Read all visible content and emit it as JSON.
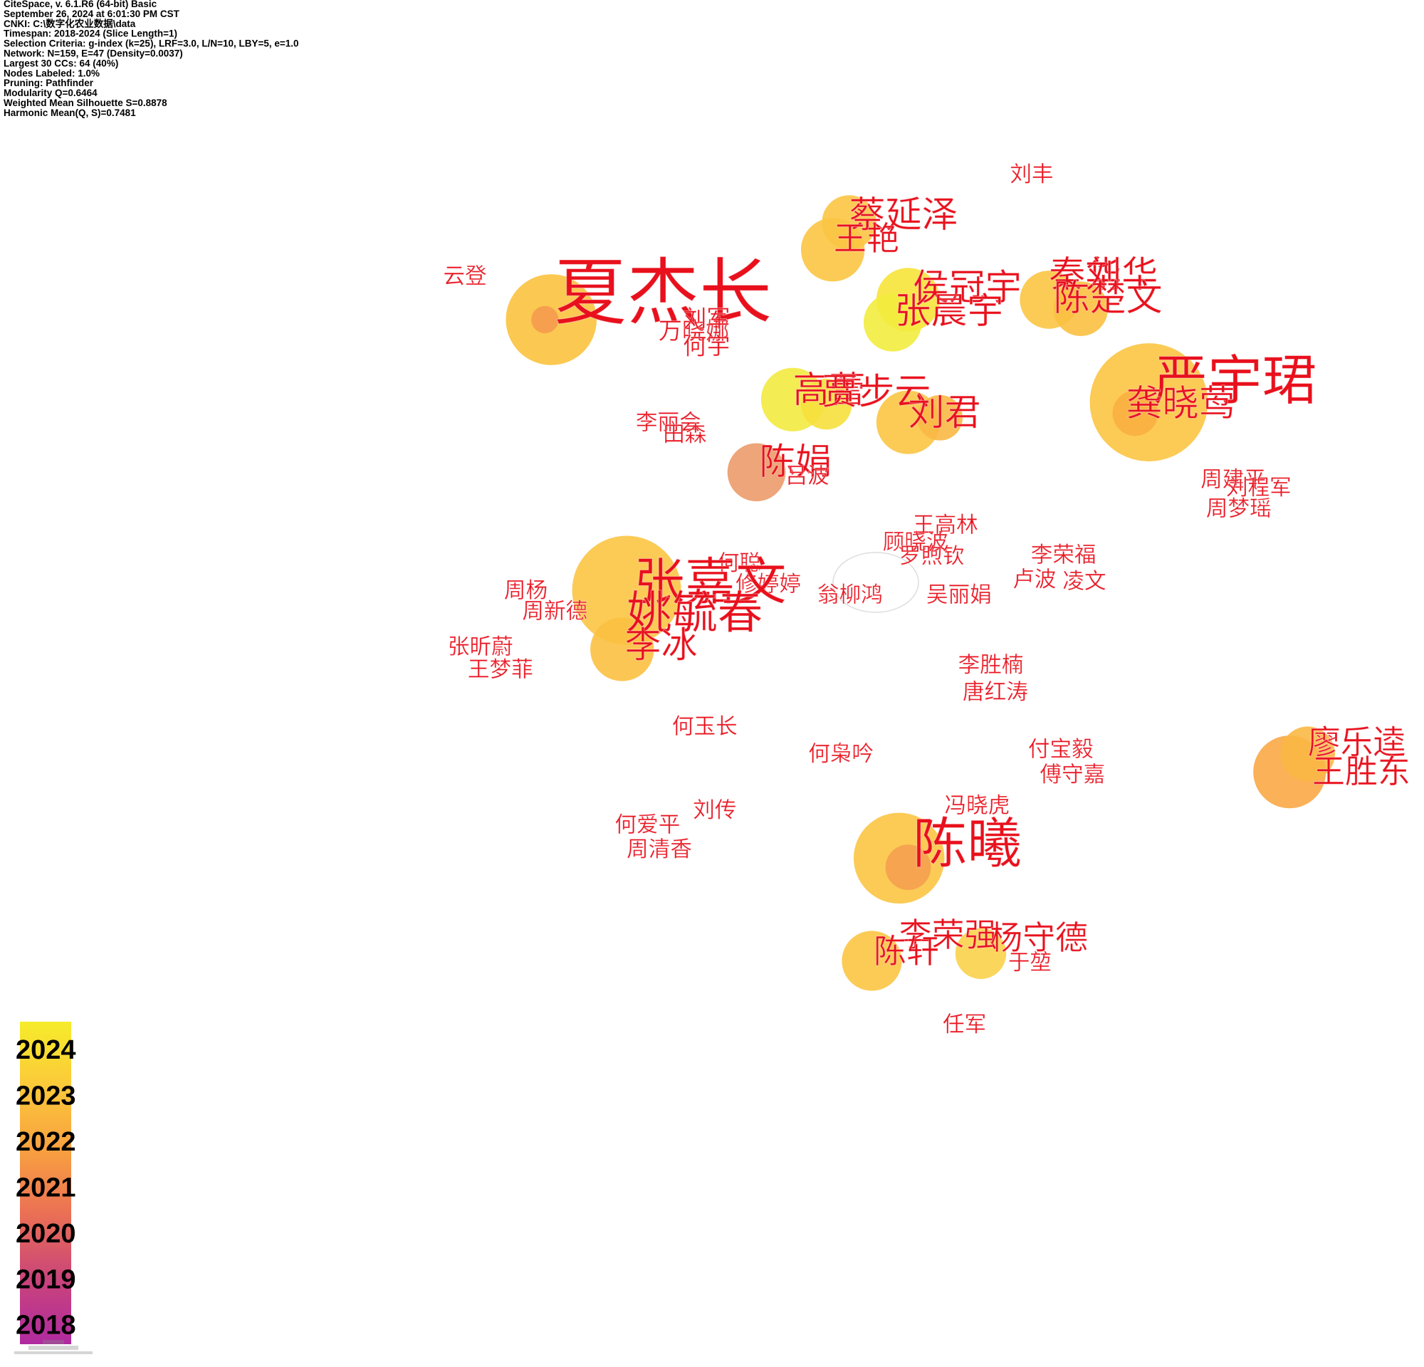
{
  "header": {
    "lines": [
      "CiteSpace, v. 6.1.R6 (64-bit) Basic",
      "September 26, 2024 at 6:01:30 PM CST",
      "CNKI: C:\\数字化农业数据\\data",
      "Timespan: 2018-2024 (Slice Length=1)",
      "Selection Criteria: g-index (k=25), LRF=3.0, L/N=10, LBY=5, e=1.0",
      "Network: N=159, E=47 (Density=0.0037)",
      "Largest 30 CCs: 64 (40%)",
      "Nodes Labeled: 1.0%",
      "Pruning: Pathfinder",
      "Modularity Q=0.6464",
      "Weighted Mean Silhouette S=0.8878",
      "Harmonic Mean(Q, S)=0.7481"
    ]
  },
  "nodes": [
    {
      "label": "刘丰"
    },
    {
      "label": "蔡延泽"
    },
    {
      "label": "王艳"
    },
    {
      "label": "云登"
    },
    {
      "label": "夏杰长"
    },
    {
      "label": "万晓娜"
    },
    {
      "label": "刘军"
    },
    {
      "label": "何宇"
    },
    {
      "label": "侯冠宇"
    },
    {
      "label": "张晨宇"
    },
    {
      "label": "秦华"
    },
    {
      "label": "刘华"
    },
    {
      "label": "陈楚文"
    },
    {
      "label": "严宇珺"
    },
    {
      "label": "龚晓莺"
    },
    {
      "label": "高蕾"
    },
    {
      "label": "贾步云"
    },
    {
      "label": "刘君"
    },
    {
      "label": "李丽会"
    },
    {
      "label": "田森"
    },
    {
      "label": "陈娟"
    },
    {
      "label": "吕波"
    },
    {
      "label": "周建平"
    },
    {
      "label": "刘程军"
    },
    {
      "label": "周梦瑶"
    },
    {
      "label": "王高林"
    },
    {
      "label": "顾晓波"
    },
    {
      "label": "罗煦钦"
    },
    {
      "label": "李荣福"
    },
    {
      "label": "卢波"
    },
    {
      "label": "凌文"
    },
    {
      "label": "何聪"
    },
    {
      "label": "修婷婷"
    },
    {
      "label": "张嘉文"
    },
    {
      "label": "姚毓春"
    },
    {
      "label": "李冰"
    },
    {
      "label": "翁柳鸿"
    },
    {
      "label": "吴丽娟"
    },
    {
      "label": "周杨"
    },
    {
      "label": "周新德"
    },
    {
      "label": "张昕蔚"
    },
    {
      "label": "王梦菲"
    },
    {
      "label": "李胜楠"
    },
    {
      "label": "唐红涛"
    },
    {
      "label": "何玉长"
    },
    {
      "label": "何枭吟"
    },
    {
      "label": "付宝毅"
    },
    {
      "label": "傅守嘉"
    },
    {
      "label": "廖乐逵"
    },
    {
      "label": "王胜东"
    },
    {
      "label": "冯晓虎"
    },
    {
      "label": "陈曦"
    },
    {
      "label": "刘传"
    },
    {
      "label": "何爱平"
    },
    {
      "label": "周清香"
    },
    {
      "label": "李荣强"
    },
    {
      "label": "杨守德"
    },
    {
      "label": "陈轩"
    },
    {
      "label": "于堃"
    },
    {
      "label": "任军"
    }
  ],
  "legend": {
    "years": [
      "2024",
      "2023",
      "2022",
      "2021",
      "2020",
      "2019",
      "2018"
    ]
  }
}
